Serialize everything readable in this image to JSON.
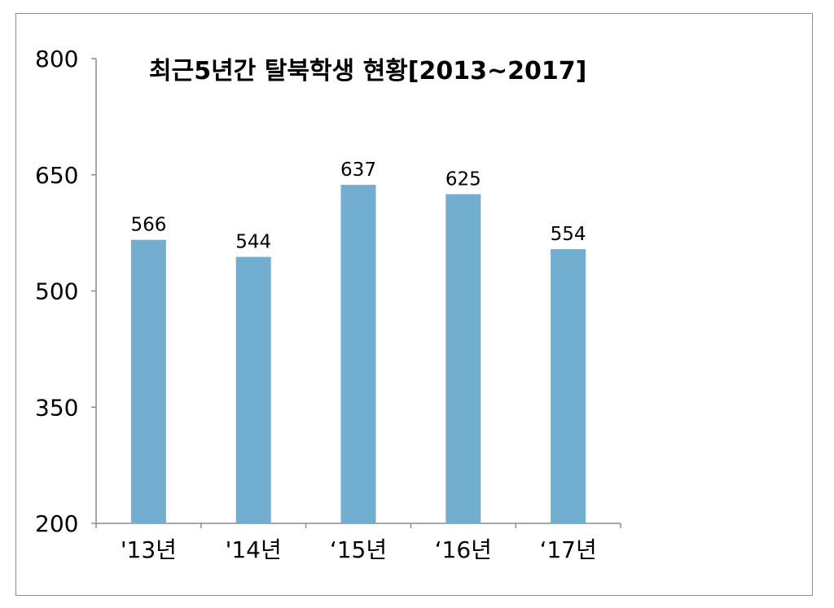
{
  "chart_data": {
    "type": "bar",
    "title": "최근5년간 탈북학생 현황[2013~2017]",
    "categories": [
      "'13년",
      "'14년",
      "‘15년",
      "‘16년",
      "‘17년"
    ],
    "values": [
      566,
      544,
      637,
      625,
      554
    ],
    "data_labels": [
      "566",
      "544",
      "637",
      "625",
      "554"
    ],
    "ylim": [
      200,
      800
    ],
    "yticks": [
      200,
      350,
      500,
      650,
      800
    ],
    "ytick_labels": [
      "200",
      "350",
      "500",
      "650",
      "800"
    ],
    "xlabel": "",
    "ylabel": "",
    "grid": false,
    "legend": "none",
    "bar_color": "#72aecf",
    "axis_color": "#8c8c8c"
  }
}
